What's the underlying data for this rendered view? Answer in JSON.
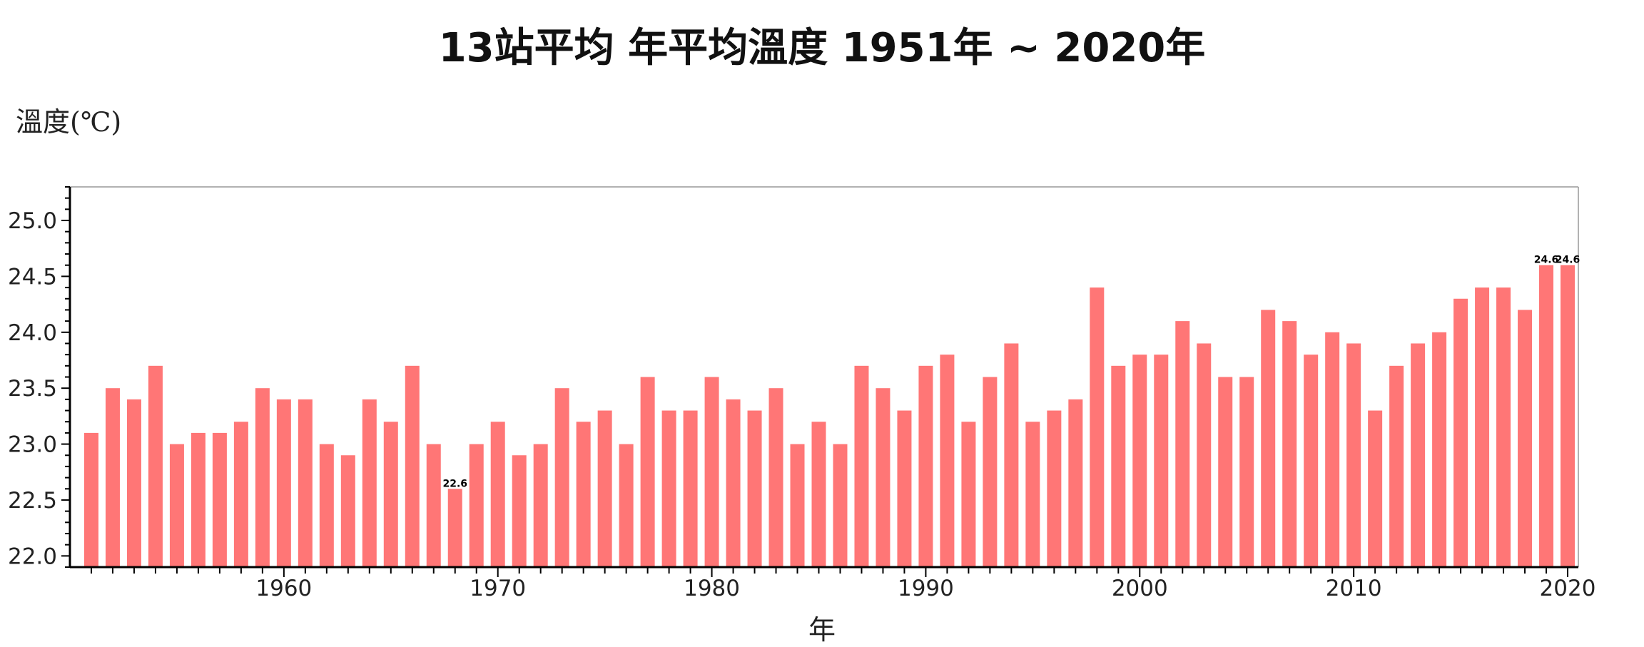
{
  "title": "13站平均 年平均溫度 1951年 ~ 2020年",
  "ylabel": "溫度(℃)",
  "xlabel": "年",
  "colors": {
    "bar": "#FF7676",
    "axis": "#000000",
    "frame": "#999999",
    "label": "#000000"
  },
  "chart_data": {
    "type": "bar",
    "title": "13站平均 年平均溫度 1951年 ~ 2020年",
    "xlabel": "年",
    "ylabel": "溫度(℃)",
    "ylim": [
      21.9,
      25.3
    ],
    "yticks": [
      22.0,
      22.5,
      23.0,
      23.5,
      24.0,
      24.5,
      25.0
    ],
    "ytick_labels": [
      "22.0",
      "22.5",
      "23.0",
      "23.5",
      "24.0",
      "24.5",
      "25.0"
    ],
    "xticks": [
      1960,
      1970,
      1980,
      1990,
      2000,
      2010,
      2020
    ],
    "xtick_labels": [
      "1960",
      "1970",
      "1980",
      "1990",
      "2000",
      "2010",
      "2020"
    ],
    "grid": false,
    "legend": "none",
    "series": [
      {
        "x": [
          1951,
          1952,
          1953,
          1954,
          1955,
          1956,
          1957,
          1958,
          1959,
          1960,
          1961,
          1962,
          1963,
          1964,
          1965,
          1966,
          1967,
          1968,
          1969,
          1970,
          1971,
          1972,
          1973,
          1974,
          1975,
          1976,
          1977,
          1978,
          1979,
          1980,
          1981,
          1982,
          1983,
          1984,
          1985,
          1986,
          1987,
          1988,
          1989,
          1990,
          1991,
          1992,
          1993,
          1994,
          1995,
          1996,
          1997,
          1998,
          1999,
          2000,
          2001,
          2002,
          2003,
          2004,
          2005,
          2006,
          2007,
          2008,
          2009,
          2010,
          2011,
          2012,
          2013,
          2014,
          2015,
          2016,
          2017,
          2018,
          2019,
          2020
        ],
        "values": [
          23.1,
          23.5,
          23.4,
          23.7,
          23.0,
          23.1,
          23.1,
          23.2,
          23.5,
          23.4,
          23.4,
          23.0,
          22.9,
          23.4,
          23.2,
          23.7,
          23.0,
          22.6,
          23.0,
          23.2,
          22.9,
          23.0,
          23.5,
          23.2,
          23.3,
          23.0,
          23.6,
          23.3,
          23.3,
          23.6,
          23.4,
          23.3,
          23.5,
          23.0,
          23.2,
          23.0,
          23.7,
          23.5,
          23.3,
          23.7,
          23.8,
          23.2,
          23.6,
          23.9,
          23.2,
          23.3,
          23.4,
          24.4,
          23.7,
          23.8,
          23.8,
          24.1,
          23.9,
          23.6,
          23.6,
          24.2,
          24.1,
          23.8,
          24.0,
          23.9,
          23.3,
          23.7,
          23.9,
          24.0,
          24.3,
          24.4,
          24.4,
          24.2,
          24.6,
          24.6
        ]
      }
    ],
    "annotations": [
      {
        "x": 1968,
        "text": "22.6"
      },
      {
        "x": 2019,
        "text": "24.6"
      },
      {
        "x": 2020,
        "text": "24.6"
      }
    ]
  }
}
